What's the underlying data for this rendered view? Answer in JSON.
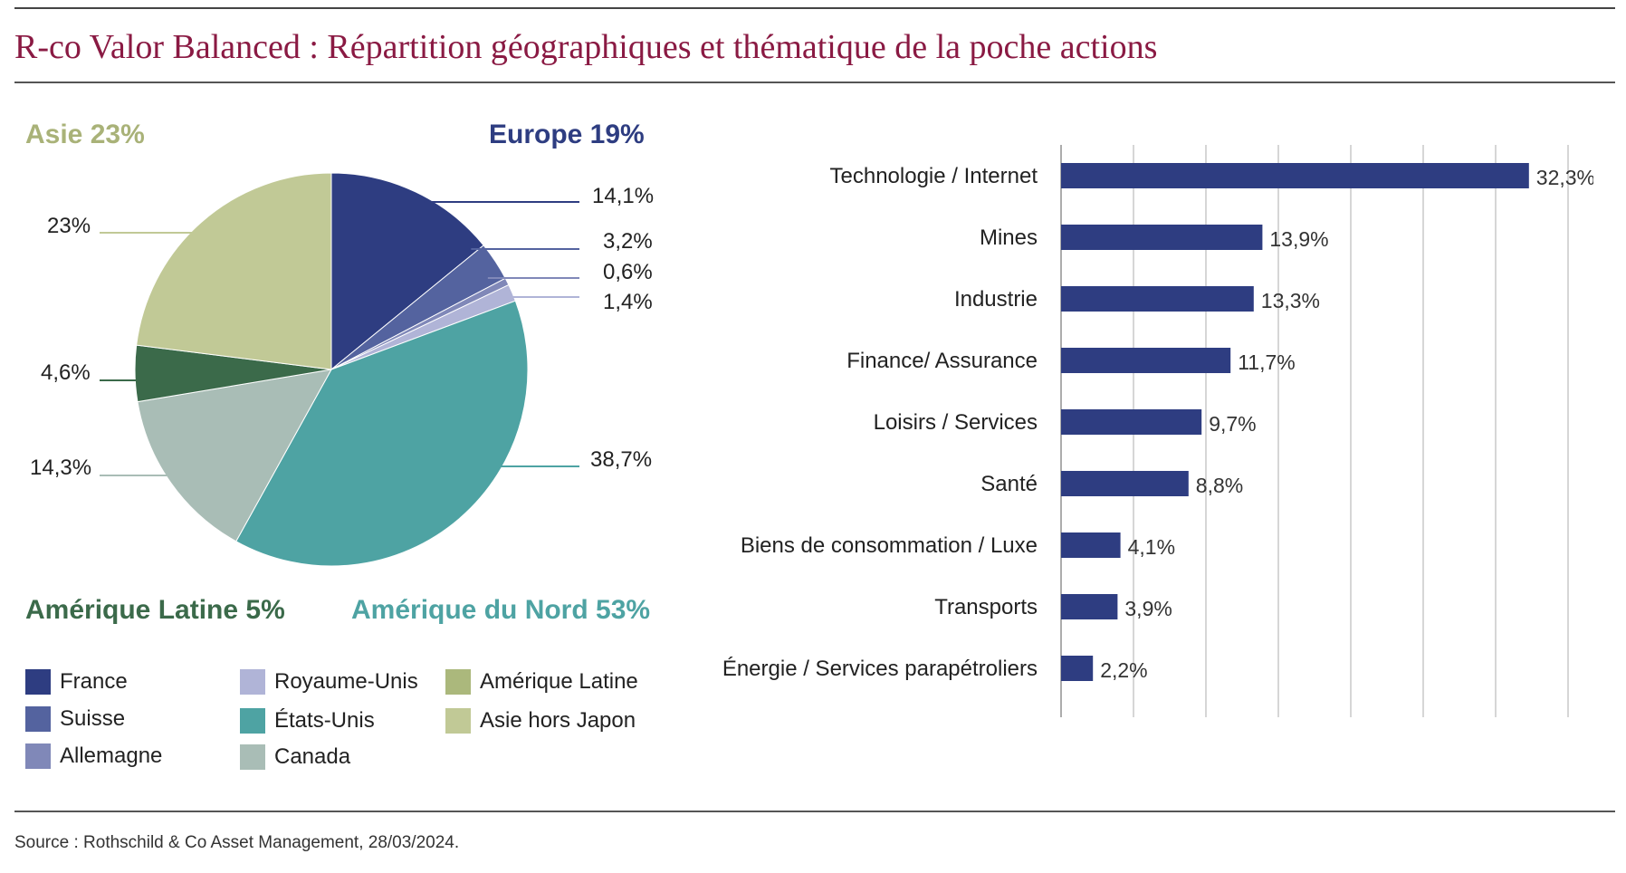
{
  "header": {
    "title": "R-co Valor Balanced : Répartition géographiques et thématique de la poche actions"
  },
  "footer": {
    "source": "Source : Rothschild & Co Asset Management, 28/03/2024."
  },
  "regions": {
    "asie": {
      "label": "Asie 23%",
      "color": "#a9b278"
    },
    "europe": {
      "label": "Europe 19%",
      "color": "#2e3d81"
    },
    "amerique_latine": {
      "label": "Amérique Latine 5%",
      "color": "#3b6a4a"
    },
    "amerique_nord": {
      "label": "Amérique du Nord 53%",
      "color": "#4ea3a3"
    }
  },
  "pie_labels": {
    "france": "14,1%",
    "suisse": "3,2%",
    "allemagne": "0,6%",
    "royaume_unis": "1,4%",
    "etats_unis": "38,7%",
    "canada": "14,3%",
    "amerique_latine": "4,6%",
    "asie_hors_japon": "23%"
  },
  "legend": [
    {
      "label": "France",
      "color": "#2e3d81"
    },
    {
      "label": "Suisse",
      "color": "#54639f"
    },
    {
      "label": "Allemagne",
      "color": "#8088b8"
    },
    {
      "label": "Royaume-Unis",
      "color": "#b0b4d7"
    },
    {
      "label": "États-Unis",
      "color": "#4ea3a3"
    },
    {
      "label": "Canada",
      "color": "#a9bdb6"
    },
    {
      "label": "Amérique Latine",
      "color": "#abb87c"
    },
    {
      "label": "Asie hors Japon",
      "color": "#c1c996"
    }
  ],
  "chart_data": [
    {
      "type": "pie",
      "title": "",
      "slices": [
        {
          "name": "France",
          "value": 14.1,
          "color": "#2e3d81"
        },
        {
          "name": "Suisse",
          "value": 3.2,
          "color": "#54639f"
        },
        {
          "name": "Allemagne",
          "value": 0.6,
          "color": "#8088b8"
        },
        {
          "name": "Royaume-Unis",
          "value": 1.4,
          "color": "#b0b4d7"
        },
        {
          "name": "États-Unis",
          "value": 38.7,
          "color": "#4ea3a3"
        },
        {
          "name": "Canada",
          "value": 14.3,
          "color": "#a9bdb6"
        },
        {
          "name": "Amérique Latine",
          "value": 4.6,
          "color": "#3b6a4a"
        },
        {
          "name": "Asie hors Japon",
          "value": 23,
          "color": "#c1c996"
        }
      ]
    },
    {
      "type": "bar",
      "orientation": "horizontal",
      "title": "",
      "categories": [
        "Technologie / Internet",
        "Mines",
        "Industrie",
        "Finance/ Assurance",
        "Loisirs / Services",
        "Santé",
        "Biens de consommation / Luxe",
        "Transports",
        "Énergie / Services parapétroliers"
      ],
      "values": [
        32.3,
        13.9,
        13.3,
        11.7,
        9.7,
        8.8,
        4.1,
        3.9,
        2.2
      ],
      "value_labels": [
        "32,3%",
        "13,9%",
        "13,3%",
        "11,7%",
        "9,7%",
        "8,8%",
        "4,1%",
        "3,9%",
        "2,2%"
      ],
      "xlim": [
        0,
        35
      ],
      "grid": true,
      "bar_color": "#2e3d81"
    }
  ]
}
